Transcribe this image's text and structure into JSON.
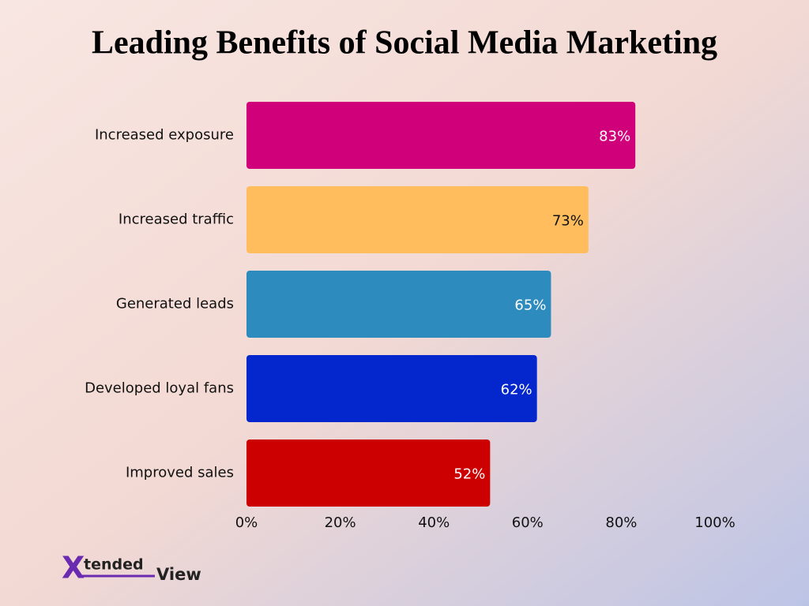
{
  "chart_data": {
    "type": "hbar",
    "title": "Leading Benefits of Social Media Marketing",
    "categories": [
      "Increased exposure",
      "Increased traffic",
      "Generated leads",
      "Developed loyal fans",
      "Improved sales"
    ],
    "values": [
      83,
      73,
      65,
      62,
      52
    ],
    "value_labels": [
      "83%",
      "73%",
      "65%",
      "62%",
      "52%"
    ],
    "colors": [
      "#d0007a",
      "#ffbd5e",
      "#2e8bbe",
      "#0327cc",
      "#cc0000"
    ],
    "value_label_colors": [
      "#ffffff",
      "#111111",
      "#ffffff",
      "#ffffff",
      "#ffffff"
    ],
    "xlim": [
      0,
      100
    ],
    "xticks": [
      {
        "value": 0,
        "label": "0%"
      },
      {
        "value": 20,
        "label": "20%"
      },
      {
        "value": 40,
        "label": "40%"
      },
      {
        "value": 60,
        "label": "60%"
      },
      {
        "value": 80,
        "label": "80%"
      },
      {
        "value": 100,
        "label": "100%"
      }
    ],
    "grid": false
  },
  "logo": [
    "X",
    "tended",
    "View"
  ]
}
